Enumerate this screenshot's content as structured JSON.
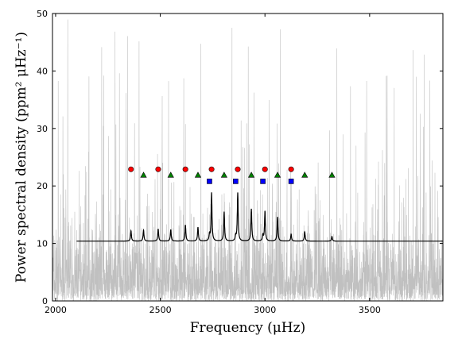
{
  "chart_data": {
    "type": "line",
    "title": "",
    "xlabel_main": "Frequency",
    "xlabel_unit": "(μHz)",
    "ylabel_main": "Power spectral density",
    "ylabel_unit": "(ppm² μHz⁻¹)",
    "xlim": [
      1985,
      3850
    ],
    "ylim": [
      0,
      50
    ],
    "xticks": [
      2000,
      2500,
      3000,
      3500
    ],
    "yticks": [
      0,
      10,
      20,
      30,
      40,
      50
    ],
    "noise_color": "#c0c0c0",
    "fit_color": "#000000",
    "series": [
      {
        "kind": "noise",
        "x_range": [
          1985,
          3850
        ],
        "typical_upper": 20,
        "upper_spikes_max": 50
      },
      {
        "kind": "fit",
        "x_range": [
          2100,
          3850
        ],
        "baseline": 10.4,
        "peaks": [
          {
            "x": 2360,
            "y": 12.2
          },
          {
            "x": 2420,
            "y": 12.3
          },
          {
            "x": 2490,
            "y": 12.5
          },
          {
            "x": 2550,
            "y": 12.4
          },
          {
            "x": 2620,
            "y": 13.2
          },
          {
            "x": 2680,
            "y": 12.8
          },
          {
            "x": 2735,
            "y": 11.5
          },
          {
            "x": 2745,
            "y": 18.8
          },
          {
            "x": 2805,
            "y": 15.5
          },
          {
            "x": 2860,
            "y": 11.2
          },
          {
            "x": 2870,
            "y": 18.8
          },
          {
            "x": 2935,
            "y": 16.0
          },
          {
            "x": 2990,
            "y": 11.4
          },
          {
            "x": 3000,
            "y": 15.6
          },
          {
            "x": 3060,
            "y": 14.6
          },
          {
            "x": 3125,
            "y": 11.6
          },
          {
            "x": 3190,
            "y": 12.0
          },
          {
            "x": 3320,
            "y": 11.2
          }
        ]
      }
    ],
    "markers": [
      {
        "shape": "circle",
        "color": "#ff0000",
        "y": 22.9,
        "x": [
          2360,
          2490,
          2620,
          2745,
          2870,
          3000,
          3125
        ]
      },
      {
        "shape": "triangle",
        "color": "#008000",
        "y": 21.9,
        "x": [
          2420,
          2550,
          2680,
          2805,
          2935,
          3060,
          3190,
          3320
        ]
      },
      {
        "shape": "square",
        "color": "#0000ff",
        "y": 20.8,
        "x": [
          2735,
          2860,
          2990,
          3125
        ]
      }
    ]
  }
}
